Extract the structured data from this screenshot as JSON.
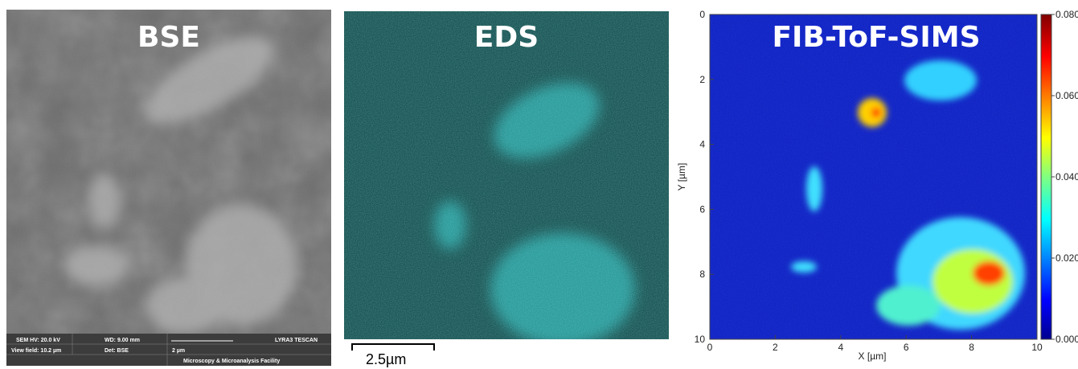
{
  "panels": [
    {
      "title": "BSE",
      "info_bar": {
        "hv": "SEM HV: 20.0 kV",
        "wd": "WD: 9.00 mm",
        "instrument": "LYRA3 TESCAN",
        "view_field": "View field: 10.2 µm",
        "detector": "Det: BSE",
        "scale": "2 µm",
        "facility": "Microscopy & Microanalysis Facility"
      }
    },
    {
      "title": "EDS",
      "scale_bar": "2.5µm"
    },
    {
      "title": "FIB-ToF-SIMS",
      "x_label": "X [µm]",
      "y_label": "Y [µm]",
      "xlim": [
        0,
        10
      ],
      "ylim": [
        10,
        0
      ],
      "xticks": [
        0,
        2,
        4,
        6,
        8,
        10
      ],
      "yticks": [
        0,
        2,
        4,
        6,
        8,
        10
      ],
      "colorbar": {
        "lim": [
          0,
          0.08
        ],
        "ticks": [
          {
            "value": 0,
            "label": "0.000"
          },
          {
            "value": 0.02,
            "label": "0.020"
          },
          {
            "value": 0.04,
            "label": "0.040"
          },
          {
            "value": 0.06,
            "label": "0.060"
          },
          {
            "value": 0.08,
            "label": "0.080"
          }
        ]
      }
    }
  ]
}
